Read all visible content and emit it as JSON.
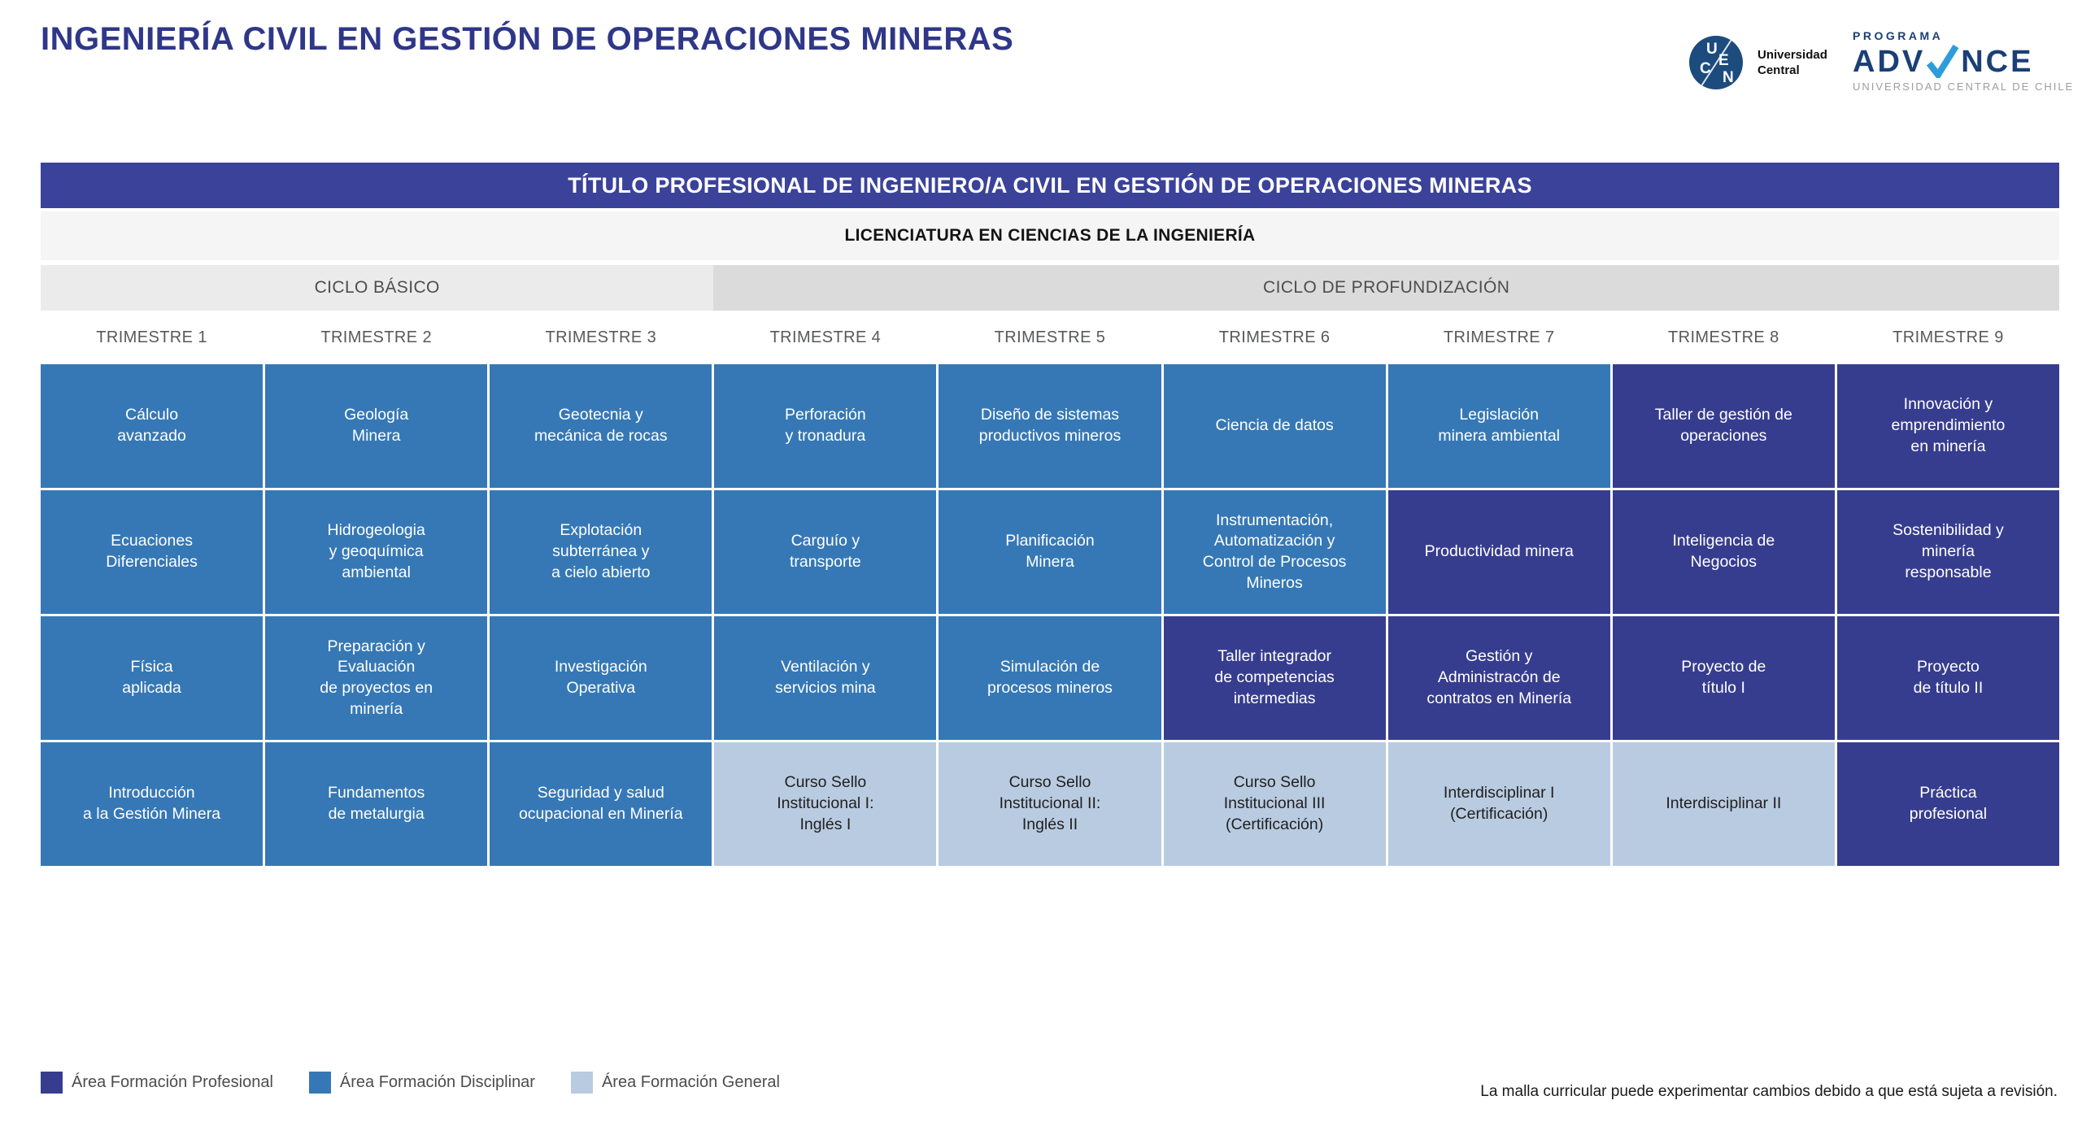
{
  "page": {
    "title": "INGENIERÍA CIVIL EN GESTIÓN DE OPERACIONES MINERAS",
    "footer_note": "La malla curricular puede experimentar cambios debido a que está sujeta a revisión."
  },
  "logos": {
    "ucen": {
      "monogram": [
        "U",
        "C",
        "E",
        "N"
      ],
      "label_line1": "Universidad",
      "label_line2": "Central"
    },
    "advance": {
      "kicker": "PROGRAMA",
      "word_start": "ADV",
      "word_end": "NCE",
      "subtitle": "UNIVERSIDAD CENTRAL DE CHILE",
      "check_color": "#2D9CDB",
      "navy": "#1B3F77"
    }
  },
  "header": {
    "degree_bar": "TÍTULO PROFESIONAL DE INGENIERO/A CIVIL EN GESTIÓN DE OPERACIONES MINERAS",
    "licenciatura_bar": "LICENCIATURA EN CIENCIAS DE LA INGENIERÍA",
    "cycles": [
      {
        "label": "CICLO BÁSICO",
        "span": 3
      },
      {
        "label": "CICLO DE PROFUNDIZACIÓN",
        "span": 6
      }
    ],
    "trimesters": [
      "TRIMESTRE 1",
      "TRIMESTRE 2",
      "TRIMESTRE 3",
      "TRIMESTRE 4",
      "TRIMESTRE 5",
      "TRIMESTRE 6",
      "TRIMESTRE 7",
      "TRIMESTRE 8",
      "TRIMESTRE 9"
    ]
  },
  "areas": {
    "profesional": {
      "label": "Área Formación Profesional",
      "color": "#373D8E",
      "text": "#FFFFFF"
    },
    "disciplinar": {
      "label": "Área Formación Disciplinar",
      "color": "#3678B5",
      "text": "#FFFFFF"
    },
    "general": {
      "label": "Área Formación General",
      "color": "#B9CBE0",
      "text": "#1F1F1F"
    }
  },
  "legend": [
    {
      "area": "profesional"
    },
    {
      "area": "disciplinar"
    },
    {
      "area": "general"
    }
  ],
  "grid": {
    "rows": [
      [
        {
          "name": "Cálculo\navanzado",
          "area": "disciplinar"
        },
        {
          "name": "Geología\nMinera",
          "area": "disciplinar"
        },
        {
          "name": "Geotecnia y\nmecánica de rocas",
          "area": "disciplinar"
        },
        {
          "name": "Perforación\ny tronadura",
          "area": "disciplinar"
        },
        {
          "name": "Diseño de sistemas\nproductivos mineros",
          "area": "disciplinar"
        },
        {
          "name": "Ciencia de datos",
          "area": "disciplinar"
        },
        {
          "name": "Legislación\nminera ambiental",
          "area": "disciplinar"
        },
        {
          "name": "Taller de gestión de\noperaciones",
          "area": "profesional"
        },
        {
          "name": "Innovación y\nemprendimiento\nen minería",
          "area": "profesional"
        }
      ],
      [
        {
          "name": "Ecuaciones\nDiferenciales",
          "area": "disciplinar"
        },
        {
          "name": "Hidrogeologia\ny geoquímica\nambiental",
          "area": "disciplinar"
        },
        {
          "name": "Explotación\nsubterránea y\na cielo abierto",
          "area": "disciplinar"
        },
        {
          "name": "Carguío y\ntransporte",
          "area": "disciplinar"
        },
        {
          "name": "Planificación\nMinera",
          "area": "disciplinar"
        },
        {
          "name": "Instrumentación,\nAutomatización y\nControl de Procesos\nMineros",
          "area": "disciplinar"
        },
        {
          "name": "Productividad minera",
          "area": "profesional"
        },
        {
          "name": "Inteligencia de\nNegocios",
          "area": "profesional"
        },
        {
          "name": "Sostenibilidad y\nminería\nresponsable",
          "area": "profesional"
        }
      ],
      [
        {
          "name": "Física\naplicada",
          "area": "disciplinar"
        },
        {
          "name": "Preparación y\nEvaluación\nde proyectos en\nminería",
          "area": "disciplinar"
        },
        {
          "name": "Investigación\nOperativa",
          "area": "disciplinar"
        },
        {
          "name": "Ventilación y\nservicios mina",
          "area": "disciplinar"
        },
        {
          "name": "Simulación de\nprocesos mineros",
          "area": "disciplinar"
        },
        {
          "name": "Taller integrador\nde competencias\nintermedias",
          "area": "profesional"
        },
        {
          "name": "Gestión y\nAdministracón de\ncontratos en Minería",
          "area": "profesional"
        },
        {
          "name": "Proyecto de\ntítulo I",
          "area": "profesional"
        },
        {
          "name": "Proyecto\nde título II",
          "area": "profesional"
        }
      ],
      [
        {
          "name": "Introducción\na la Gestión Minera",
          "area": "disciplinar"
        },
        {
          "name": "Fundamentos\nde metalurgia",
          "area": "disciplinar"
        },
        {
          "name": "Seguridad y salud\nocupacional en Minería",
          "area": "disciplinar"
        },
        {
          "name": "Curso Sello\nInstitucional I:\nInglés I",
          "area": "general"
        },
        {
          "name": "Curso Sello\nInstitucional II:\nInglés II",
          "area": "general"
        },
        {
          "name": "Curso Sello\nInstitucional III\n(Certificación)",
          "area": "general"
        },
        {
          "name": "Interdisciplinar I\n(Certificación)",
          "area": "general"
        },
        {
          "name": "Interdisciplinar II",
          "area": "general"
        },
        {
          "name": "Práctica\nprofesional",
          "area": "profesional"
        }
      ]
    ]
  }
}
